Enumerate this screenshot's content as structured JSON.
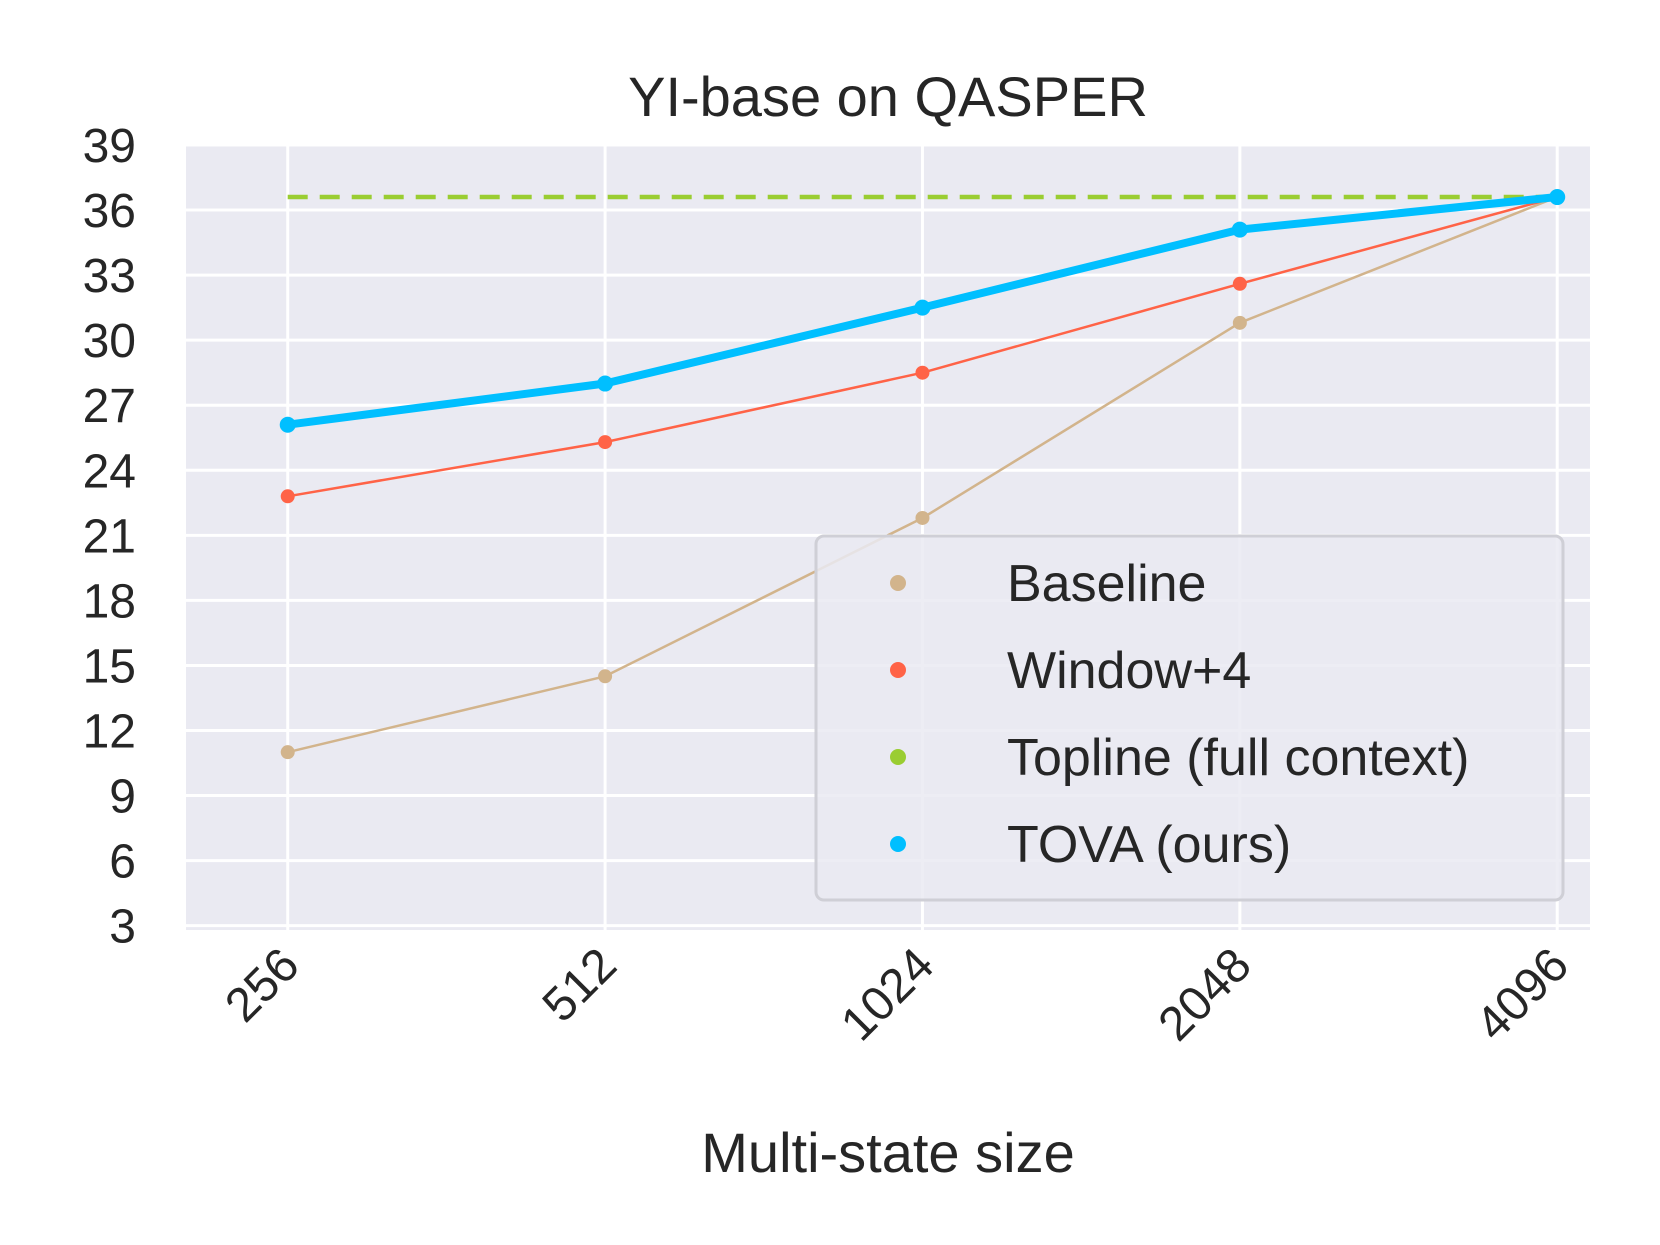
{
  "chart_data": {
    "type": "line",
    "title": "YI-base on QASPER",
    "xlabel": "Multi-state size",
    "ylabel": "",
    "x_scale": "log2",
    "x": [
      256,
      512,
      1024,
      2048,
      4096
    ],
    "x_tick_labels": [
      "256",
      "512",
      "1024",
      "2048",
      "4096"
    ],
    "xlim": [
      205,
      4400
    ],
    "ylim": [
      2.8,
      39
    ],
    "y_ticks": [
      3,
      6,
      9,
      12,
      15,
      18,
      21,
      24,
      27,
      30,
      33,
      36,
      39
    ],
    "y_tick_labels": [
      "3",
      "6",
      "9",
      "12",
      "15",
      "18",
      "21",
      "24",
      "27",
      "30",
      "33",
      "36",
      "39"
    ],
    "grid": true,
    "legend_position": "lower-right",
    "series": [
      {
        "name": "Baseline",
        "color": "#D2B48C",
        "style": "solid",
        "width": "thin",
        "markers": true,
        "values": [
          11.0,
          14.5,
          21.8,
          30.8,
          36.6
        ]
      },
      {
        "name": "Window+4",
        "color": "#FF6347",
        "style": "solid",
        "width": "thin",
        "markers": true,
        "values": [
          22.8,
          25.3,
          28.5,
          32.6,
          36.6
        ]
      },
      {
        "name": "Topline (full context)",
        "color": "#9ACD32",
        "style": "dashed",
        "width": "medium",
        "markers": false,
        "values": [
          36.6,
          36.6,
          36.6,
          36.6,
          36.6
        ]
      },
      {
        "name": "TOVA (ours)",
        "color": "#00BFFF",
        "style": "solid",
        "width": "thick",
        "markers": true,
        "values": [
          26.1,
          28.0,
          31.5,
          35.1,
          36.6
        ]
      }
    ]
  }
}
